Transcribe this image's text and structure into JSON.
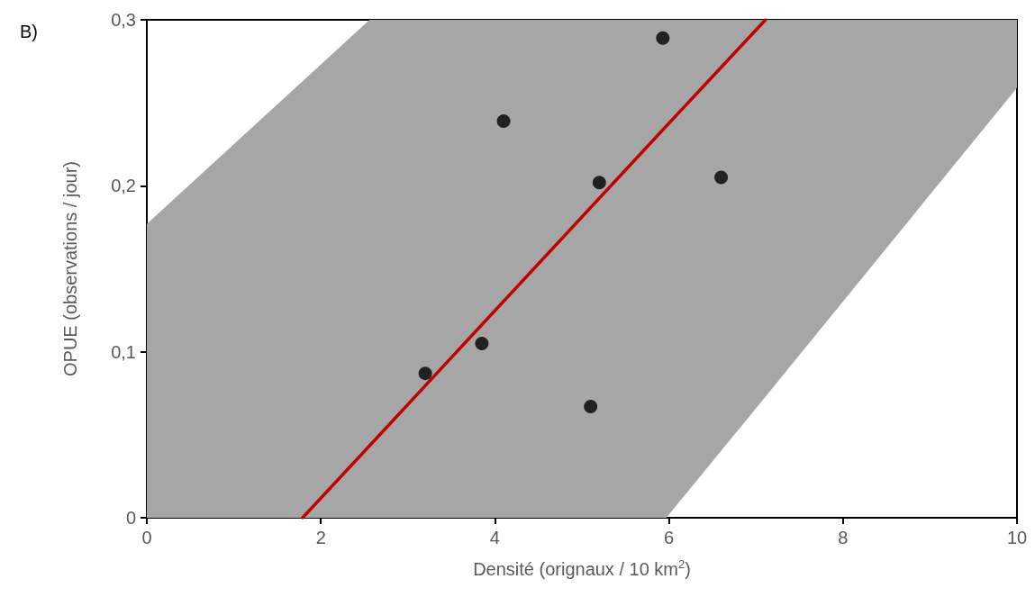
{
  "chart_data": {
    "type": "scatter",
    "xlabel": "Densité (orignaux / 10 km$^{2}$)",
    "ylabel": "OPUE (observations / jour)",
    "annotations": [
      "B)"
    ],
    "series": [
      {
        "color": "#000000",
        "marker": "circle",
        "x": [
          3.2,
          3.85,
          4.1,
          5.2,
          5.1,
          5.93,
          6.6
        ],
        "values": [
          0.087,
          0.105,
          0.239,
          0.202,
          0.067,
          0.289,
          0.205
        ]
      },
      {
        "type": "line",
        "color": "#c00000",
        "line_style": "solid",
        "marker": "none",
        "x": [
          0,
          1.79,
          2.56,
          5.97,
          7.11,
          10
        ],
        "values": [
          null,
          0,
          0.0434,
          0.236,
          0.3,
          null
        ],
        "lower": [
          0,
          0,
          0,
          0,
          0.073,
          0.259
        ],
        "upper": [
          0.177,
          0.263,
          0.3,
          0.3,
          0.3,
          0.3
        ]
      }
    ],
    "xlim": [
      0,
      10
    ],
    "xticks": [
      0,
      2,
      4,
      6,
      8,
      10
    ],
    "ylim": [
      0,
      0.3
    ],
    "yticks": [
      {
        "value": 0,
        "label": "0"
      },
      {
        "value": 0.1,
        "label": "0,1"
      },
      {
        "value": 0.2,
        "label": "0,2"
      },
      {
        "value": 0.3,
        "label": "0,3"
      }
    ],
    "grid": false
  }
}
